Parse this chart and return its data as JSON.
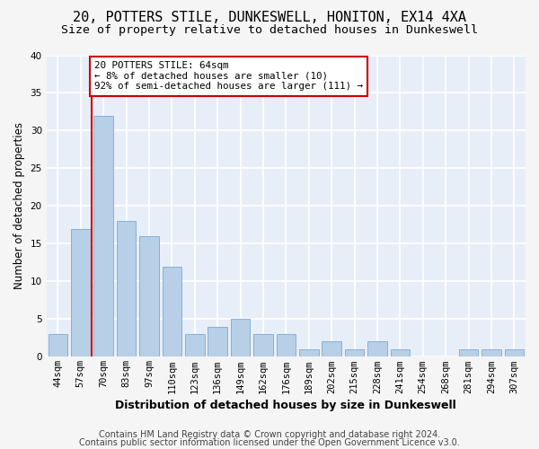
{
  "title": "20, POTTERS STILE, DUNKESWELL, HONITON, EX14 4XA",
  "subtitle": "Size of property relative to detached houses in Dunkeswell",
  "xlabel": "Distribution of detached houses by size in Dunkeswell",
  "ylabel": "Number of detached properties",
  "categories": [
    "44sqm",
    "57sqm",
    "70sqm",
    "83sqm",
    "97sqm",
    "110sqm",
    "123sqm",
    "136sqm",
    "149sqm",
    "162sqm",
    "176sqm",
    "189sqm",
    "202sqm",
    "215sqm",
    "228sqm",
    "241sqm",
    "254sqm",
    "268sqm",
    "281sqm",
    "294sqm",
    "307sqm"
  ],
  "values": [
    3,
    17,
    32,
    18,
    16,
    12,
    3,
    4,
    5,
    3,
    3,
    1,
    2,
    1,
    2,
    1,
    0,
    0,
    1,
    1,
    1
  ],
  "bar_color": "#b8cfe8",
  "bar_edge_color": "#7aaad0",
  "bg_color": "#e8eef8",
  "grid_color": "#ffffff",
  "annotation_text": "20 POTTERS STILE: 64sqm\n← 8% of detached houses are smaller (10)\n92% of semi-detached houses are larger (111) →",
  "annotation_box_color": "#ffffff",
  "annotation_box_edge_color": "#cc0000",
  "property_line_x": 1.5,
  "property_line_color": "#cc0000",
  "footer1": "Contains HM Land Registry data © Crown copyright and database right 2024.",
  "footer2": "Contains public sector information licensed under the Open Government Licence v3.0.",
  "ylim": [
    0,
    40
  ],
  "title_fontsize": 11,
  "subtitle_fontsize": 9.5,
  "xlabel_fontsize": 9,
  "ylabel_fontsize": 8.5,
  "tick_fontsize": 7.5,
  "annotation_fontsize": 7.8,
  "footer_fontsize": 7.0,
  "fig_bg_color": "#f5f5f5"
}
